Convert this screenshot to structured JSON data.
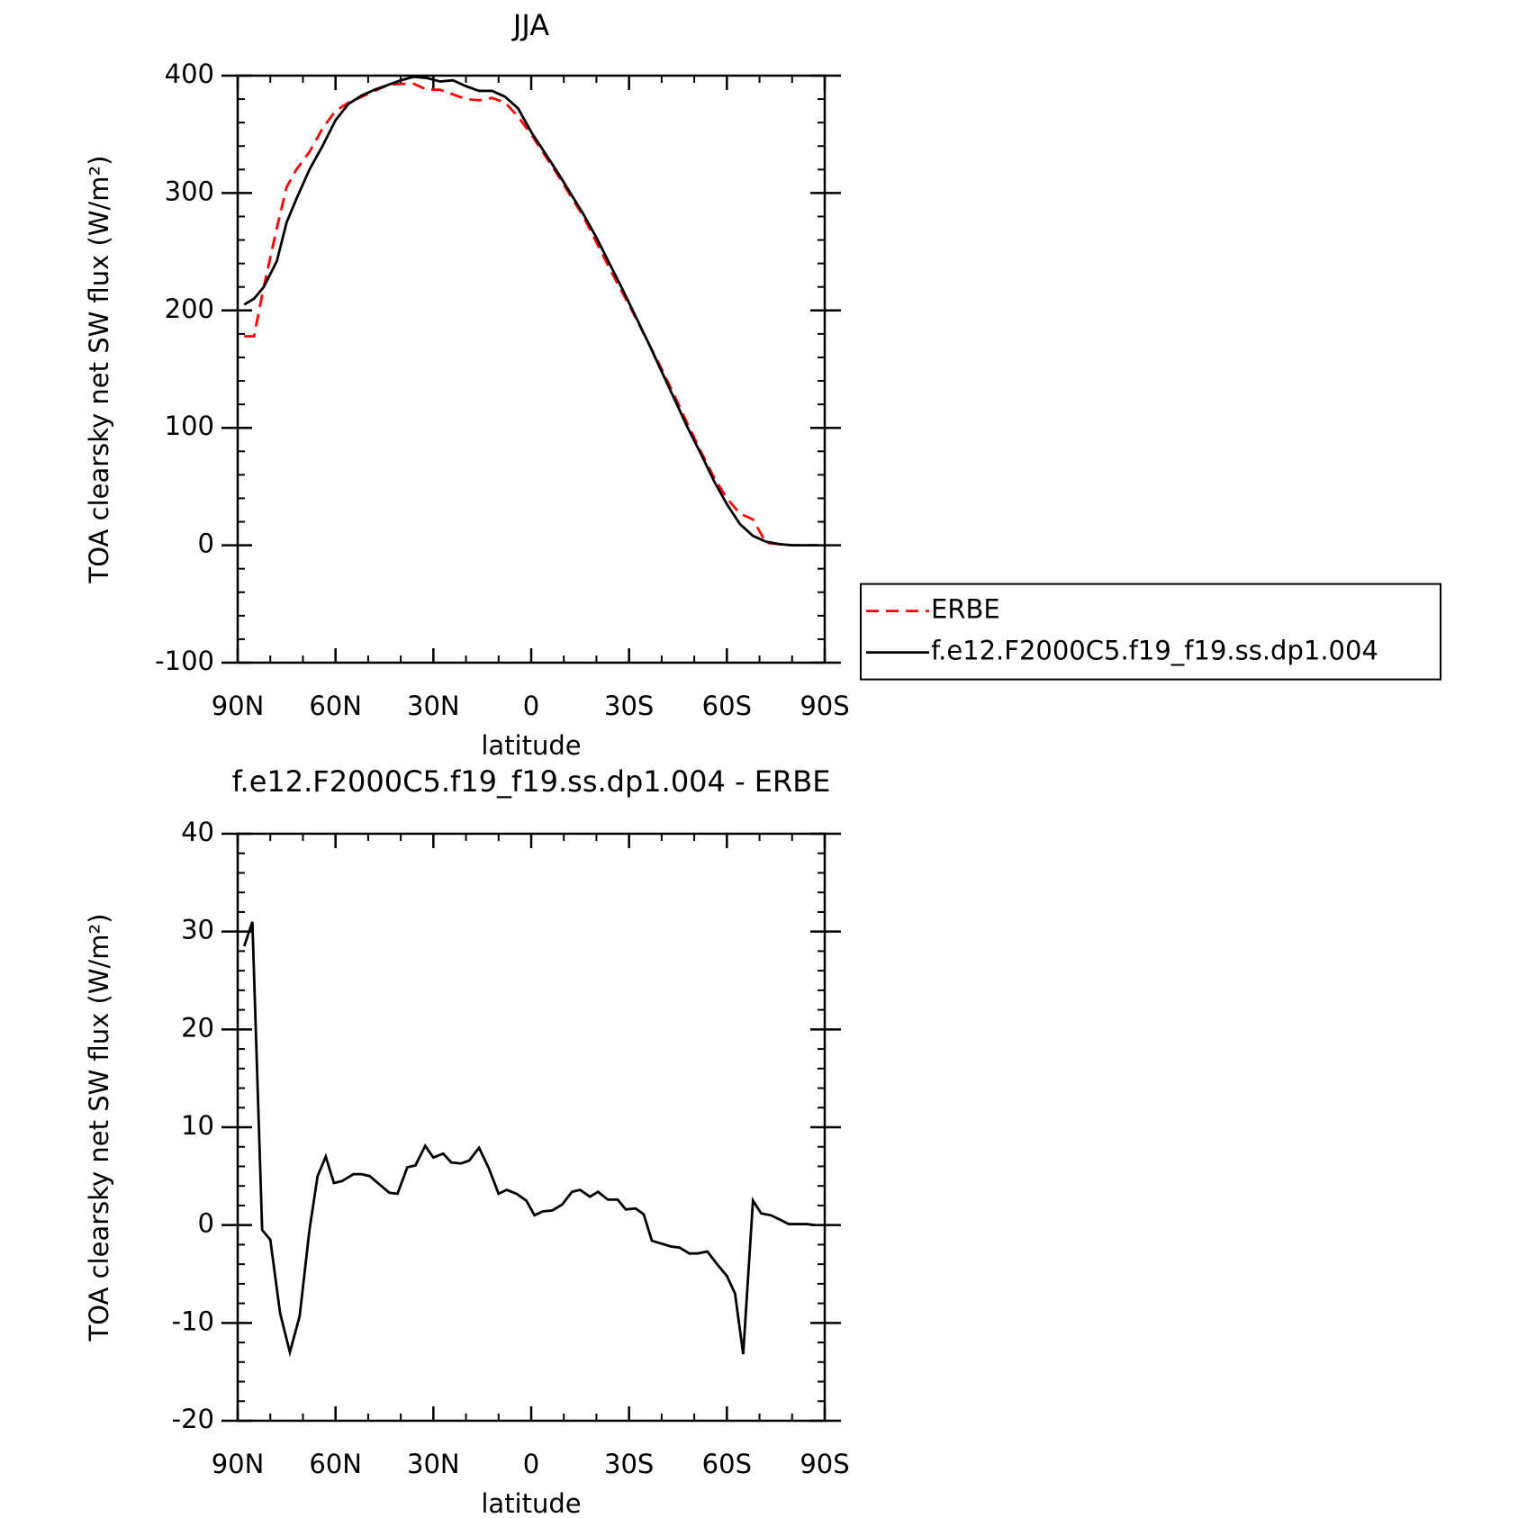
{
  "chart_data": [
    {
      "type": "line",
      "title": "JJA",
      "xlabel": "latitude",
      "ylabel": "TOA clearsky net SW flux (W/m²)",
      "xlim": [
        90,
        -90
      ],
      "xticks": [
        {
          "value": 90,
          "label": "90N"
        },
        {
          "value": 60,
          "label": "60N"
        },
        {
          "value": 30,
          "label": "30N"
        },
        0,
        {
          "value": -30,
          "label": "30S"
        },
        {
          "value": -60,
          "label": "60S"
        },
        {
          "value": -90,
          "label": "90S"
        }
      ],
      "ylim": [
        -100,
        400
      ],
      "yticks": [
        -100,
        0,
        100,
        200,
        300,
        400
      ],
      "legend": "right",
      "x": [
        88,
        85,
        82,
        78,
        75,
        72,
        68,
        64,
        60,
        56,
        52,
        48,
        44,
        40,
        36,
        32,
        28,
        24,
        20,
        16,
        12,
        8,
        4,
        0,
        -4,
        -8,
        -12,
        -16,
        -20,
        -24,
        -28,
        -32,
        -36,
        -40,
        -44,
        -48,
        -52,
        -56,
        -60,
        -64,
        -68,
        -72,
        -76,
        -80,
        -84,
        -88
      ],
      "series": [
        {
          "name": "ERBE",
          "color": "#ff0000",
          "dashed": true,
          "values": [
            178,
            178,
            220,
            270,
            305,
            320,
            335,
            355,
            370,
            377,
            382,
            387,
            392,
            393,
            393,
            388,
            388,
            384,
            380,
            379,
            381,
            377,
            365,
            350,
            333,
            316,
            298,
            280,
            258,
            236,
            215,
            194,
            172,
            150,
            127,
            103,
            80,
            58,
            40,
            27,
            22,
            2,
            1,
            0,
            0,
            0
          ]
        },
        {
          "name": "f.e12.F2000C5.f19_f19.ss.dp1.004",
          "color": "#000000",
          "dashed": false,
          "values": [
            205,
            210,
            220,
            242,
            275,
            295,
            320,
            340,
            362,
            376,
            383,
            388,
            392,
            396,
            399,
            398,
            395,
            396,
            391,
            387,
            387,
            382,
            372,
            352,
            335,
            318,
            300,
            282,
            262,
            240,
            218,
            195,
            172,
            148,
            124,
            100,
            78,
            55,
            35,
            18,
            8,
            3,
            1,
            0,
            0,
            0
          ]
        }
      ]
    },
    {
      "type": "line",
      "title": "f.e12.F2000C5.f19_f19.ss.dp1.004 - ERBE",
      "xlabel": "latitude",
      "ylabel": "TOA clearsky net SW flux (W/m²)",
      "xlim": [
        90,
        -90
      ],
      "xticks": [
        {
          "value": 90,
          "label": "90N"
        },
        {
          "value": 60,
          "label": "60N"
        },
        {
          "value": 30,
          "label": "30N"
        },
        0,
        {
          "value": -30,
          "label": "30S"
        },
        {
          "value": -60,
          "label": "60S"
        },
        {
          "value": -90,
          "label": "90S"
        }
      ],
      "ylim": [
        -20,
        40
      ],
      "yticks": [
        -20,
        -10,
        0,
        10,
        20,
        30,
        40
      ],
      "x": [
        88,
        85.5,
        82.5,
        80,
        77,
        74,
        71,
        68,
        65.5,
        63,
        60.5,
        58,
        54.5,
        52,
        49.5,
        43.5,
        41,
        38,
        35.5,
        32.5,
        30,
        27,
        24.5,
        21.5,
        19,
        16,
        13,
        10,
        7.5,
        4.5,
        1.5,
        -1,
        -3.5,
        -6.5,
        -9.5,
        -12.5,
        -15,
        -18,
        -20.5,
        -23.5,
        -26.5,
        -29,
        -32,
        -34.5,
        -37,
        -43,
        -45.5,
        -48.5,
        -51,
        -54,
        -57,
        -60,
        -62.5,
        -65,
        -68,
        -70.5,
        -73.5,
        -76,
        -79,
        -82,
        -84.5,
        -87
      ],
      "series": [
        {
          "color": "#000000",
          "dashed": false,
          "values": [
            28.5,
            31,
            -0.5,
            -1.5,
            -9,
            -13,
            -9.3,
            -0.5,
            5,
            7,
            4.3,
            4.5,
            5.2,
            5.2,
            5,
            3.3,
            3.2,
            5.9,
            6.1,
            8.1,
            6.9,
            7.3,
            6.4,
            6.3,
            6.6,
            7.9,
            5.8,
            3.2,
            3.6,
            3.2,
            2.5,
            1,
            1.4,
            1.5,
            2.1,
            3.4,
            3.6,
            2.9,
            3.4,
            2.6,
            2.6,
            1.6,
            1.7,
            1.1,
            -1.6,
            -2.2,
            -2.3,
            -2.9,
            -2.9,
            -2.7,
            -4,
            -5.2,
            -7,
            -13.2,
            2.5,
            1.2,
            1,
            0.6,
            0.1,
            0.1,
            0.1,
            0
          ]
        }
      ]
    }
  ]
}
